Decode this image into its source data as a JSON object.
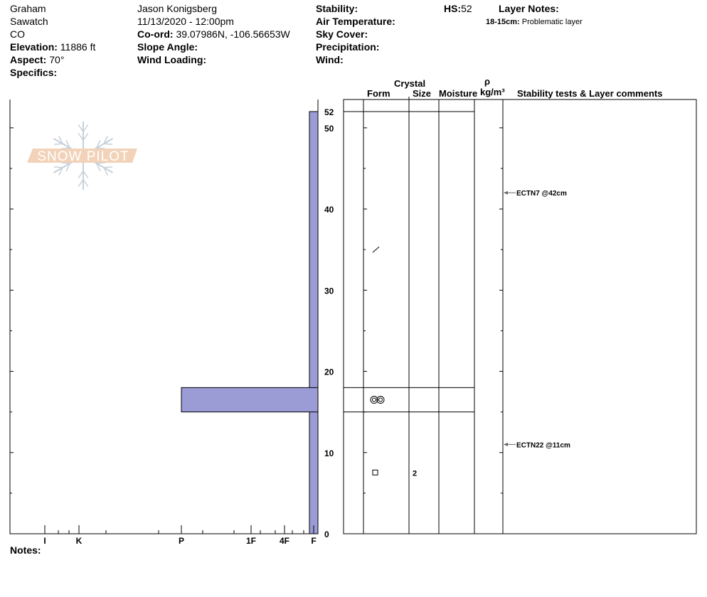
{
  "header": {
    "col1": {
      "name": "Graham",
      "range": "Sawatch",
      "state": "CO",
      "elevation_label": "Elevation:",
      "elevation": "11886 ft",
      "aspect_label": "Aspect:",
      "aspect": "70°",
      "specifics_label": "Specifics:"
    },
    "col2": {
      "observer": "Jason Konigsberg",
      "datetime": "11/13/2020 - 12:00pm",
      "coord_label": "Co-ord:",
      "coord": "39.07986N, -106.56653W",
      "slope_label": "Slope Angle:",
      "wind_loading_label": "Wind Loading:"
    },
    "col3": {
      "stability_label": "Stability:",
      "air_temp_label": "Air Temperature:",
      "sky_label": "Sky Cover:",
      "precip_label": "Precipitation:",
      "wind_label": "Wind:"
    },
    "hs_label": "HS:",
    "hs": "52",
    "layer_notes_label": "Layer Notes:",
    "layer_note_range": "18-15cm:",
    "layer_note_text": "Problematic layer"
  },
  "logo": {
    "text": "SNOW PILOT"
  },
  "table_headers": {
    "crystal": "Crystal",
    "form": "Form",
    "size": "Size",
    "moisture": "Moisture",
    "rho": "ρ",
    "density_unit": "kg/m³",
    "comments": "Stability tests & Layer comments"
  },
  "hardness_labels": [
    "I",
    "K",
    "P",
    "1F",
    "4F",
    "F"
  ],
  "depth_labels": [
    "52",
    "50",
    "40",
    "30",
    "20",
    "10",
    "0"
  ],
  "notes_label": "Notes:",
  "chart_data": {
    "type": "bar",
    "ylim": [
      0,
      52
    ],
    "layers": [
      {
        "top": 52,
        "bottom": 0,
        "hardness": "F"
      },
      {
        "top": 18,
        "bottom": 15,
        "hardness": "P",
        "form": "MFcr"
      }
    ],
    "crystal_marks": [
      {
        "depth": 35,
        "form": "DF"
      },
      {
        "depth": 7.5,
        "form": "FC",
        "size": "2"
      }
    ],
    "stability_tests": [
      {
        "depth": 42,
        "label": "ECTN7 @42cm"
      },
      {
        "depth": 11,
        "label": "ECTN22 @11cm"
      }
    ],
    "bar_color": "#9b9bd6",
    "logo_colors": {
      "band": "#f2d2b8",
      "flake": "#c5d0da"
    }
  }
}
